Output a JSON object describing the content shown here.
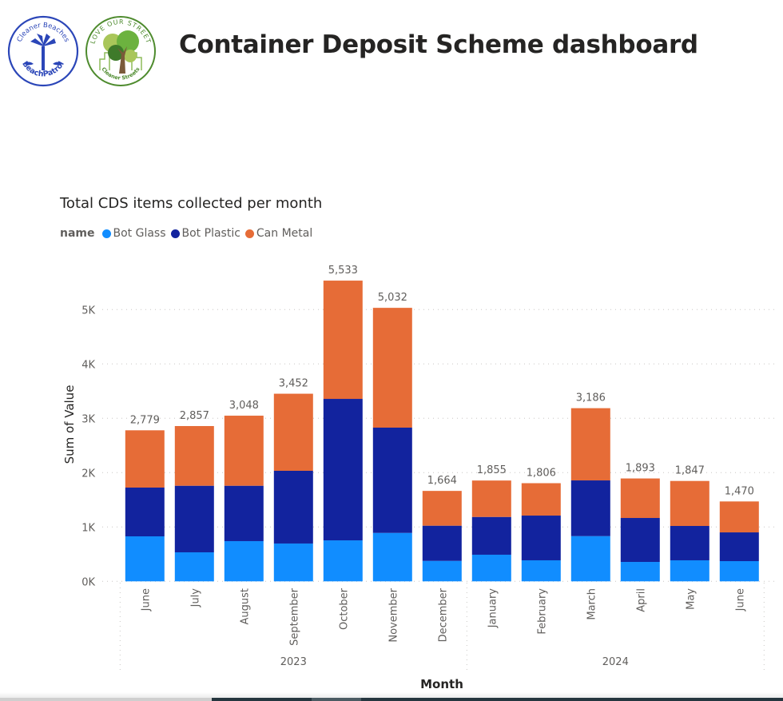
{
  "header": {
    "title": "Container Deposit Scheme dashboard",
    "logos": [
      {
        "name": "beach-patrol-logo",
        "top_text": "Cleaner Beaches",
        "bottom_text": "BeachPatrol",
        "color": "#2B46B8"
      },
      {
        "name": "love-our-street-logo",
        "top_text": "LOVE OUR STREET",
        "bottom_text": "Cleaner Streets",
        "color": "#4E8B2E"
      }
    ]
  },
  "colors": {
    "bot_glass": "#118DFF",
    "bot_plastic": "#12239E",
    "can_metal": "#E66C37"
  },
  "chart_data": {
    "type": "bar",
    "stacked": true,
    "title": "Total CDS items collected per month",
    "legend_title": "name",
    "legend_position": "top-left",
    "xlabel": "Month",
    "ylabel": "Sum of Value",
    "ylim": [
      0,
      5600
    ],
    "yticks": [
      0,
      1000,
      2000,
      3000,
      4000,
      5000
    ],
    "ytick_labels": [
      "0K",
      "1K",
      "2K",
      "3K",
      "4K",
      "5K"
    ],
    "grid": true,
    "categories": [
      "June",
      "July",
      "August",
      "September",
      "October",
      "November",
      "December",
      "January",
      "February",
      "March",
      "April",
      "May",
      "June"
    ],
    "year_groups": [
      {
        "label": "2023",
        "start": 0,
        "end": 6
      },
      {
        "label": "2024",
        "start": 7,
        "end": 12
      }
    ],
    "series": [
      {
        "name": "Bot Glass",
        "color": "#118DFF",
        "values": [
          828,
          534,
          740,
          696,
          754,
          891,
          376,
          490,
          387,
          832,
          357,
          387,
          372
        ]
      },
      {
        "name": "Bot Plastic",
        "color": "#12239E",
        "values": [
          897,
          1225,
          1019,
          1338,
          2603,
          1937,
          648,
          695,
          823,
          1025,
          809,
          632,
          529
        ]
      },
      {
        "name": "Can Metal",
        "color": "#E66C37",
        "values": [
          1054,
          1098,
          1289,
          1418,
          2176,
          2204,
          640,
          670,
          596,
          1329,
          727,
          828,
          569
        ]
      }
    ],
    "totals": [
      2779,
      2857,
      3048,
      3452,
      5533,
      5032,
      1664,
      1855,
      1806,
      3186,
      1893,
      1847,
      1470
    ],
    "total_labels": [
      "2,779",
      "2,857",
      "3,048",
      "3,452",
      "5,533",
      "5,032",
      "1,664",
      "1,855",
      "1,806",
      "3,186",
      "1,893",
      "1,847",
      "1,470"
    ]
  }
}
